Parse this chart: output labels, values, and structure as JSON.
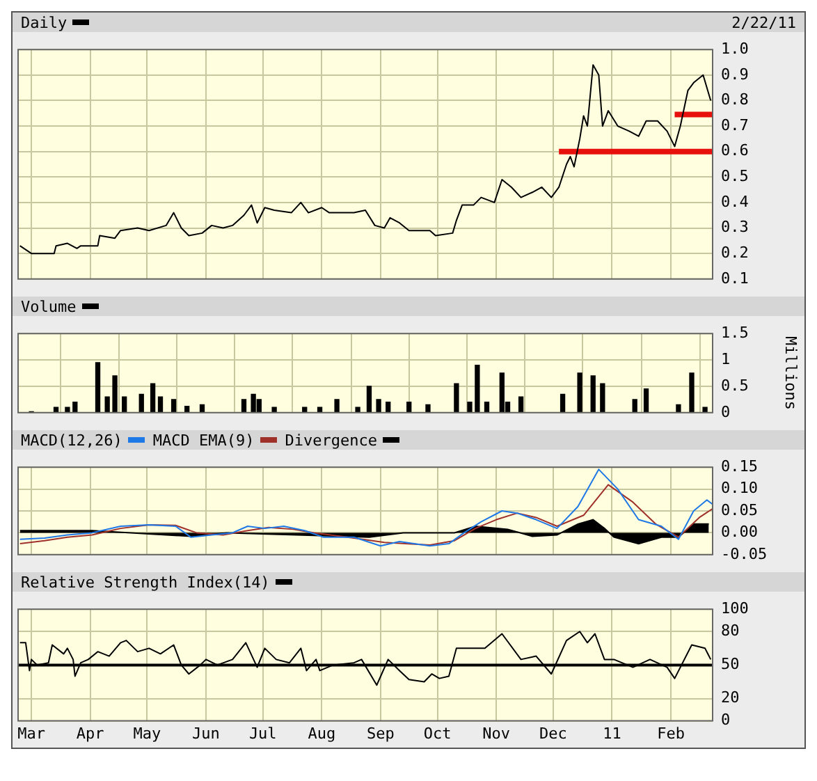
{
  "chart_data": [
    {
      "type": "line",
      "legend": "top left",
      "tick_labels": "y",
      "grid": true,
      "annotations": [
        "2/22/11"
      ],
      "xlim": [
        "2010-02-22",
        "2011-02-23"
      ],
      "xticks": [
        {
          "value": "2010-03-01",
          "label": null
        },
        {
          "value": "2010-04-01",
          "label": null
        },
        {
          "value": "2010-05-01",
          "label": null
        },
        {
          "value": "2010-06-01",
          "label": null
        },
        {
          "value": "2010-07-01",
          "label": null
        },
        {
          "value": "2010-08-01",
          "label": null
        },
        {
          "value": "2010-09-01",
          "label": null
        },
        {
          "value": "2010-10-01",
          "label": null
        },
        {
          "value": "2010-11-01",
          "label": null
        },
        {
          "value": "2010-12-01",
          "label": null
        },
        {
          "value": "2011-01-01",
          "label": null
        },
        {
          "value": "2011-02-01",
          "label": null
        }
      ],
      "ylim": [
        0.1,
        1.0
      ],
      "yticks": [
        0.1,
        0.2,
        0.3,
        0.4,
        0.5,
        0.6,
        0.7,
        0.8,
        0.9,
        {
          "value": 1.0,
          "label": "1.0"
        }
      ],
      "series": [
        {
          "name": "Daily",
          "color": "#000000",
          "x": [
            "2010-02-23",
            "2010-03-01",
            "2010-03-13",
            "2010-03-14",
            "2010-03-20",
            "2010-03-25",
            "2010-03-27",
            "2010-04-05",
            "2010-04-06",
            "2010-04-14",
            "2010-04-17",
            "2010-04-26",
            "2010-05-02",
            "2010-05-11",
            "2010-05-15",
            "2010-05-19",
            "2010-05-23",
            "2010-05-30",
            "2010-06-04",
            "2010-06-10",
            "2010-06-15",
            "2010-06-21",
            "2010-06-25",
            "2010-06-28",
            "2010-07-02",
            "2010-07-07",
            "2010-07-16",
            "2010-07-21",
            "2010-07-25",
            "2010-08-01",
            "2010-08-05",
            "2010-08-18",
            "2010-08-24",
            "2010-08-29",
            "2010-09-03",
            "2010-09-06",
            "2010-09-11",
            "2010-09-16",
            "2010-09-27",
            "2010-09-30",
            "2010-10-09",
            "2010-10-11",
            "2010-10-14",
            "2010-10-20",
            "2010-10-24",
            "2010-10-31",
            "2010-11-04",
            "2010-11-09",
            "2010-11-14",
            "2010-11-20",
            "2010-11-25",
            "2010-11-30",
            "2010-12-04",
            "2010-12-08",
            "2010-12-10",
            "2010-12-12",
            "2010-12-15",
            "2010-12-17",
            "2010-12-19",
            "2010-12-22",
            "2010-12-25",
            "2010-12-27",
            "2010-12-30",
            "2011-01-04",
            "2011-01-10",
            "2011-01-15",
            "2011-01-19",
            "2011-01-25",
            "2011-01-30",
            "2011-02-03",
            "2011-02-06",
            "2011-02-10",
            "2011-02-13",
            "2011-02-18",
            "2011-02-22"
          ],
          "values": [
            0.23,
            0.2,
            0.2,
            0.23,
            0.24,
            0.22,
            0.23,
            0.23,
            0.27,
            0.26,
            0.29,
            0.3,
            0.29,
            0.31,
            0.36,
            0.3,
            0.27,
            0.28,
            0.31,
            0.3,
            0.31,
            0.35,
            0.39,
            0.32,
            0.38,
            0.37,
            0.36,
            0.4,
            0.36,
            0.38,
            0.36,
            0.36,
            0.37,
            0.31,
            0.3,
            0.34,
            0.32,
            0.29,
            0.29,
            0.27,
            0.28,
            0.33,
            0.39,
            0.39,
            0.42,
            0.4,
            0.49,
            0.46,
            0.42,
            0.44,
            0.46,
            0.42,
            0.46,
            0.55,
            0.58,
            0.54,
            0.65,
            0.74,
            0.7,
            0.94,
            0.9,
            0.7,
            0.76,
            0.7,
            0.68,
            0.66,
            0.72,
            0.72,
            0.68,
            0.62,
            0.7,
            0.84,
            0.87,
            0.9,
            0.8
          ]
        },
        {
          "color": "#e8100c",
          "x": [
            "2010-12-04",
            "2011-02-23"
          ],
          "values": [
            0.6,
            0.6
          ]
        },
        {
          "color": "#e8100c",
          "x": [
            "2011-02-03",
            "2011-02-23"
          ],
          "values": [
            0.745,
            0.745
          ]
        }
      ]
    },
    {
      "type": "bar",
      "legend": "top left",
      "tick_labels": "y",
      "grid": true,
      "ylabel": "Millions",
      "xlim": [
        "2010-02-22",
        "2011-02-23"
      ],
      "xticks": [
        {
          "value": "2010-03-01",
          "label": null
        },
        {
          "value": "2010-04-01",
          "label": null
        },
        {
          "value": "2010-05-01",
          "label": null
        },
        {
          "value": "2010-06-01",
          "label": null
        },
        {
          "value": "2010-07-01",
          "label": null
        },
        {
          "value": "2010-08-01",
          "label": null
        },
        {
          "value": "2010-09-01",
          "label": null
        },
        {
          "value": "2010-10-01",
          "label": null
        },
        {
          "value": "2010-11-01",
          "label": null
        },
        {
          "value": "2010-12-01",
          "label": null
        },
        {
          "value": "2011-01-01",
          "label": null
        },
        {
          "value": "2011-02-01",
          "label": null
        }
      ],
      "ylim": [
        0,
        1.5
      ],
      "yticks": [
        0,
        0.5,
        1,
        1.5
      ],
      "series": [
        {
          "name": "Volume",
          "color": "#000000",
          "x": [
            "2010-03-01",
            "2010-03-14",
            "2010-03-20",
            "2010-03-24",
            "2010-04-05",
            "2010-04-10",
            "2010-04-14",
            "2010-04-19",
            "2010-04-28",
            "2010-05-04",
            "2010-05-08",
            "2010-05-15",
            "2010-05-22",
            "2010-05-30",
            "2010-06-21",
            "2010-06-26",
            "2010-06-29",
            "2010-07-07",
            "2010-07-23",
            "2010-07-31",
            "2010-08-09",
            "2010-08-20",
            "2010-08-26",
            "2010-08-31",
            "2010-09-05",
            "2010-09-16",
            "2010-09-26",
            "2010-10-11",
            "2010-10-18",
            "2010-10-22",
            "2010-10-27",
            "2010-11-04",
            "2010-11-07",
            "2010-11-14",
            "2010-12-06",
            "2010-12-15",
            "2010-12-22",
            "2010-12-27",
            "2011-01-13",
            "2011-01-19",
            "2011-02-05",
            "2011-02-12",
            "2011-02-19"
          ],
          "values": [
            0.02,
            0.1,
            0.1,
            0.2,
            0.95,
            0.3,
            0.7,
            0.3,
            0.35,
            0.55,
            0.3,
            0.25,
            0.12,
            0.15,
            0.25,
            0.35,
            0.25,
            0.1,
            0.1,
            0.1,
            0.25,
            0.1,
            0.5,
            0.25,
            0.2,
            0.2,
            0.15,
            0.55,
            0.2,
            0.9,
            0.2,
            0.75,
            0.2,
            0.3,
            0.35,
            0.75,
            0.7,
            0.55,
            0.25,
            0.45,
            0.15,
            0.75,
            0.1
          ]
        }
      ]
    },
    {
      "type": "line",
      "legend": "top left",
      "tick_labels": "y",
      "grid": true,
      "xlim": [
        "2010-02-22",
        "2011-02-23"
      ],
      "xticks": [
        {
          "value": "2010-03-01",
          "label": null
        },
        {
          "value": "2010-04-01",
          "label": null
        },
        {
          "value": "2010-05-01",
          "label": null
        },
        {
          "value": "2010-06-01",
          "label": null
        },
        {
          "value": "2010-07-01",
          "label": null
        },
        {
          "value": "2010-08-01",
          "label": null
        },
        {
          "value": "2010-09-01",
          "label": null
        },
        {
          "value": "2010-10-01",
          "label": null
        },
        {
          "value": "2010-11-01",
          "label": null
        },
        {
          "value": "2010-12-01",
          "label": null
        },
        {
          "value": "2011-01-01",
          "label": null
        },
        {
          "value": "2011-02-01",
          "label": null
        }
      ],
      "ylim": [
        -0.05,
        0.15
      ],
      "yticks": [
        -0.05,
        {
          "value": 0,
          "label": "0.00"
        },
        0.05,
        {
          "value": 0.1,
          "label": "0.10"
        },
        0.15
      ],
      "series": [
        {
          "name": "MACD(12,26)",
          "color": "#1e78e6",
          "x": [
            "2010-02-23",
            "2010-03-08",
            "2010-03-20",
            "2010-04-02",
            "2010-04-17",
            "2010-05-02",
            "2010-05-16",
            "2010-05-24",
            "2010-06-04",
            "2010-06-15",
            "2010-06-23",
            "2010-07-02",
            "2010-07-12",
            "2010-07-23",
            "2010-08-02",
            "2010-08-18",
            "2010-09-01",
            "2010-09-11",
            "2010-09-27",
            "2010-10-07",
            "2010-10-15",
            "2010-10-24",
            "2010-11-04",
            "2010-11-12",
            "2010-11-22",
            "2010-12-03",
            "2010-12-14",
            "2010-12-25",
            "2011-01-04",
            "2011-01-15",
            "2011-01-27",
            "2011-02-05",
            "2011-02-13",
            "2011-02-20",
            "2011-02-23"
          ],
          "values": [
            -0.015,
            -0.012,
            -0.005,
            0,
            0.015,
            0.018,
            0.015,
            -0.01,
            -0.005,
            0,
            0.015,
            0.01,
            0.015,
            0.005,
            -0.01,
            -0.01,
            -0.03,
            -0.02,
            -0.03,
            -0.025,
            0,
            0.025,
            0.05,
            0.045,
            0.03,
            0.01,
            0.06,
            0.145,
            0.1,
            0.03,
            0.015,
            -0.015,
            0.05,
            0.075,
            0.065
          ]
        },
        {
          "name": "MACD EMA(9)",
          "color": "#a0302a",
          "x": [
            "2010-02-23",
            "2010-03-08",
            "2010-03-20",
            "2010-04-02",
            "2010-04-17",
            "2010-05-02",
            "2010-05-16",
            "2010-05-27",
            "2010-06-10",
            "2010-06-23",
            "2010-07-04",
            "2010-07-17",
            "2010-07-28",
            "2010-08-18",
            "2010-09-03",
            "2010-09-27",
            "2010-10-10",
            "2010-10-21",
            "2010-11-01",
            "2010-11-12",
            "2010-11-22",
            "2010-12-03",
            "2010-12-17",
            "2010-12-30",
            "2011-01-12",
            "2011-01-24",
            "2011-02-05",
            "2011-02-16",
            "2011-02-23"
          ],
          "values": [
            -0.025,
            -0.018,
            -0.01,
            -0.005,
            0.01,
            0.018,
            0.017,
            0,
            -0.005,
            0.005,
            0.012,
            0.008,
            0,
            -0.012,
            -0.022,
            -0.028,
            -0.018,
            0.01,
            0.03,
            0.045,
            0.035,
            0.015,
            0.04,
            0.11,
            0.07,
            0.02,
            -0.01,
            0.035,
            0.055
          ]
        },
        {
          "name": "Divergence",
          "type": "area",
          "color": "#000000",
          "x": [
            "2010-02-23",
            "2010-04-02",
            "2010-05-24",
            "2010-06-12",
            "2010-08-26",
            "2010-09-13",
            "2010-10-10",
            "2010-10-21",
            "2010-11-07",
            "2010-11-20",
            "2010-12-03",
            "2010-12-14",
            "2010-12-22",
            "2010-12-28",
            "2011-01-02",
            "2011-01-15",
            "2011-01-27",
            "2011-02-05",
            "2011-02-13",
            "2011-02-21"
          ],
          "values": [
            0.005,
            0.005,
            -0.008,
            0,
            -0.01,
            0,
            0,
            0.015,
            0.008,
            -0.008,
            -0.005,
            0.02,
            0.03,
            0.01,
            -0.01,
            -0.025,
            -0.01,
            -0.01,
            0.02,
            0.02
          ]
        }
      ]
    },
    {
      "type": "line",
      "legend": "top left",
      "grid": true,
      "xlim": [
        "2010-02-22",
        "2011-02-23"
      ],
      "xticks": [
        {
          "value": "2010-03-01",
          "label": "Mar"
        },
        {
          "value": "2010-04-01",
          "label": "Apr"
        },
        {
          "value": "2010-05-01",
          "label": "May"
        },
        {
          "value": "2010-06-01",
          "label": "Jun"
        },
        {
          "value": "2010-07-01",
          "label": "Jul"
        },
        {
          "value": "2010-08-01",
          "label": "Aug"
        },
        {
          "value": "2010-09-01",
          "label": "Sep"
        },
        {
          "value": "2010-10-01",
          "label": "Oct"
        },
        {
          "value": "2010-11-01",
          "label": "Nov"
        },
        {
          "value": "2010-12-01",
          "label": "Dec"
        },
        {
          "value": "2011-01-01",
          "label": "11"
        },
        {
          "value": "2011-02-01",
          "label": "Feb"
        }
      ],
      "ylim": [
        0,
        100
      ],
      "yticks": [
        0,
        20,
        50,
        80,
        100
      ],
      "ref_lines": [
        {
          "axis": "y",
          "value": 50,
          "color": "#000000"
        }
      ],
      "series": [
        {
          "name": "Relative Strength Index(14)",
          "color": "#000000",
          "x": [
            "2010-02-23",
            "2010-02-26",
            "2010-02-28",
            "2010-03-01",
            "2010-03-04",
            "2010-03-10",
            "2010-03-12",
            "2010-03-18",
            "2010-03-20",
            "2010-03-23",
            "2010-03-24",
            "2010-03-27",
            "2010-03-31",
            "2010-04-05",
            "2010-04-11",
            "2010-04-17",
            "2010-04-20",
            "2010-04-26",
            "2010-05-02",
            "2010-05-08",
            "2010-05-15",
            "2010-05-19",
            "2010-05-23",
            "2010-05-29",
            "2010-06-01",
            "2010-06-07",
            "2010-06-15",
            "2010-06-22",
            "2010-06-28",
            "2010-07-02",
            "2010-07-08",
            "2010-07-15",
            "2010-07-21",
            "2010-07-24",
            "2010-07-29",
            "2010-07-31",
            "2010-08-07",
            "2010-08-18",
            "2010-08-22",
            "2010-08-30",
            "2010-09-05",
            "2010-09-11",
            "2010-09-16",
            "2010-09-24",
            "2010-09-28",
            "2010-10-02",
            "2010-10-07",
            "2010-10-11",
            "2010-10-18",
            "2010-10-26",
            "2010-11-04",
            "2010-11-14",
            "2010-11-22",
            "2010-11-30",
            "2010-12-08",
            "2010-12-15",
            "2010-12-19",
            "2010-12-23",
            "2010-12-28",
            "2011-01-02",
            "2011-01-12",
            "2011-01-21",
            "2011-01-30",
            "2011-02-03",
            "2011-02-12",
            "2011-02-19",
            "2011-02-22"
          ],
          "values": [
            70,
            70,
            45,
            55,
            50,
            52,
            68,
            60,
            65,
            55,
            40,
            52,
            55,
            62,
            58,
            70,
            72,
            62,
            65,
            60,
            68,
            50,
            42,
            50,
            55,
            50,
            55,
            70,
            48,
            65,
            55,
            52,
            65,
            45,
            55,
            45,
            50,
            52,
            55,
            32,
            55,
            45,
            37,
            35,
            42,
            38,
            40,
            65,
            65,
            65,
            78,
            55,
            58,
            42,
            72,
            80,
            70,
            78,
            55,
            55,
            48,
            55,
            48,
            38,
            68,
            65,
            55
          ]
        }
      ]
    }
  ]
}
